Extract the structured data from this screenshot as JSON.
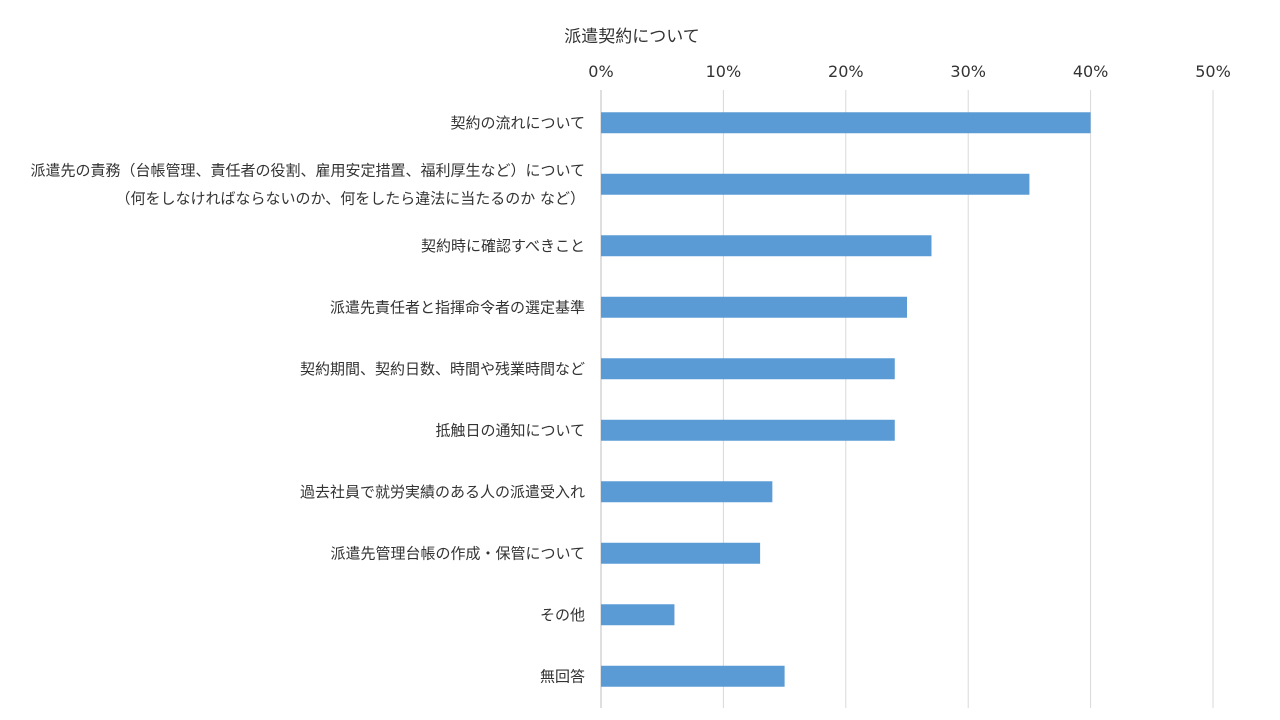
{
  "chart_data": {
    "type": "bar",
    "orientation": "horizontal",
    "title": "派遣契約について",
    "xlabel": "",
    "ylabel": "",
    "xlim": [
      0,
      50
    ],
    "x_ticks": [
      "0%",
      "10%",
      "20%",
      "30%",
      "40%",
      "50%"
    ],
    "x_tick_values": [
      0,
      10,
      20,
      30,
      40,
      50
    ],
    "x_axis_position": "top",
    "grid": true,
    "legend": "none",
    "bar_color": "#5b9bd5",
    "categories": [
      [
        "契約の流れについて"
      ],
      [
        "派遣先の責務（台帳管理、責任者の役割、雇用安定措置、福利厚生など）について",
        "（何をしなければならないのか、何をしたら違法に当たるのか  など）"
      ],
      [
        "契約時に確認すべきこと"
      ],
      [
        "派遣先責任者と指揮命令者の選定基準"
      ],
      [
        "契約期間、契約日数、時間や残業時間など"
      ],
      [
        "抵触日の通知について"
      ],
      [
        "過去社員で就労実績のある人の派遣受入れ"
      ],
      [
        "派遣先管理台帳の作成・保管について"
      ],
      [
        "その他"
      ],
      [
        "無回答"
      ]
    ],
    "values": [
      40,
      35,
      27,
      25,
      24,
      24,
      14,
      13,
      6,
      15
    ]
  }
}
